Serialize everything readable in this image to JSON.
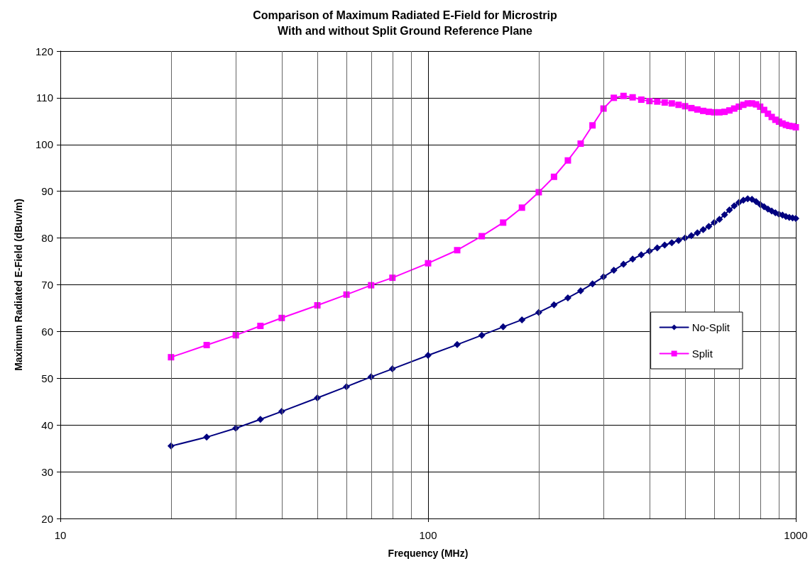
{
  "chart_data": {
    "type": "line",
    "title": "Comparison of Maximum Radiated E-Field for Microstrip",
    "subtitle": "With and without Split Ground Reference Plane",
    "xlabel": "Frequency (MHz)",
    "ylabel": "Maximum Radiated E-Field (dBuv/m)",
    "x": [
      20,
      25,
      30,
      35,
      40,
      50,
      60,
      70,
      80,
      100,
      120,
      140,
      160,
      180,
      200,
      220,
      240,
      260,
      280,
      300,
      320,
      340,
      360,
      380,
      400,
      420,
      440,
      460,
      480,
      500,
      520,
      540,
      560,
      580,
      600,
      620,
      640,
      660,
      680,
      700,
      720,
      740,
      760,
      780,
      800,
      820,
      840,
      860,
      880,
      900,
      920,
      940,
      960,
      980,
      1000
    ],
    "series": [
      {
        "name": "No-Split",
        "color": "#000080",
        "marker": "diamond",
        "values": [
          35.5,
          37.4,
          39.3,
          41.2,
          42.9,
          45.8,
          48.2,
          50.3,
          52.0,
          54.9,
          57.2,
          59.2,
          61.0,
          62.5,
          64.1,
          65.7,
          67.2,
          68.7,
          70.2,
          71.7,
          73.1,
          74.4,
          75.5,
          76.4,
          77.2,
          77.9,
          78.5,
          79.0,
          79.5,
          80.0,
          80.5,
          81.1,
          81.8,
          82.5,
          83.3,
          84.0,
          85.0,
          86.0,
          86.9,
          87.6,
          88.1,
          88.4,
          88.3,
          87.8,
          87.2,
          86.7,
          86.2,
          85.8,
          85.4,
          85.1,
          84.9,
          84.6,
          84.4,
          84.3,
          84.2
        ]
      },
      {
        "name": "Split",
        "color": "#ff00ff",
        "marker": "square",
        "values": [
          54.5,
          57.1,
          59.2,
          61.2,
          62.9,
          65.6,
          67.9,
          69.9,
          71.5,
          74.6,
          77.4,
          80.4,
          83.3,
          86.5,
          89.8,
          93.1,
          96.6,
          100.2,
          104.1,
          107.7,
          110.0,
          110.4,
          110.1,
          109.6,
          109.3,
          109.2,
          109.0,
          108.8,
          108.5,
          108.2,
          107.8,
          107.5,
          107.2,
          107.0,
          106.9,
          106.9,
          107.0,
          107.3,
          107.7,
          108.1,
          108.5,
          108.8,
          108.8,
          108.6,
          108.1,
          107.4,
          106.6,
          105.9,
          105.3,
          104.9,
          104.5,
          104.2,
          104.0,
          103.9,
          103.7
        ]
      }
    ],
    "log": "x",
    "xlim": [
      10,
      1000
    ],
    "xticks": [
      10,
      100,
      1000
    ],
    "ylim": [
      20,
      120
    ],
    "yticks": [
      20,
      30,
      40,
      50,
      60,
      70,
      80,
      90,
      100,
      110,
      120
    ],
    "grid": true,
    "legend": "right",
    "line_style": "solid"
  }
}
